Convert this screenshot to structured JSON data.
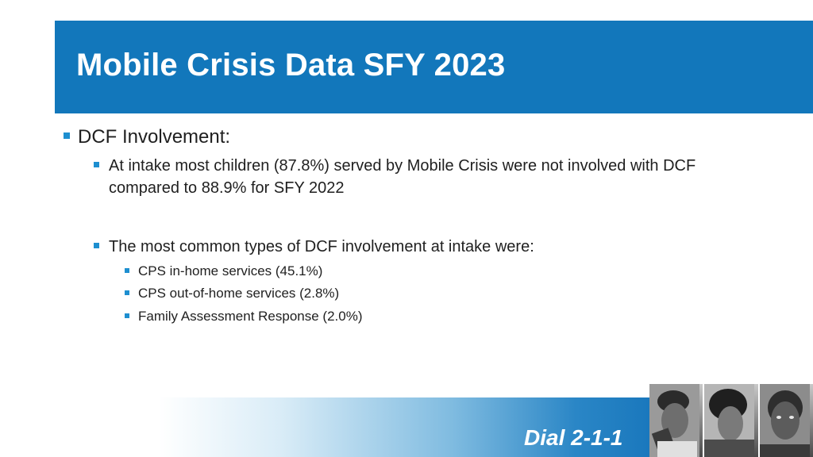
{
  "slide": {
    "title": "Mobile Crisis Data SFY 2023",
    "bullets": {
      "heading": "DCF Involvement:",
      "point1": "At intake most children (87.8%) served by Mobile Crisis were not involved with DCF compared to 88.9% for SFY 2022",
      "point2": "The most common types of DCF involvement at intake were:",
      "sub": [
        "CPS in-home services (45.1%)",
        "CPS out-of-home services (2.8%)",
        "Family Assessment Response (2.0%)"
      ]
    },
    "footer": {
      "dial_label": "Dial 2-1-1"
    },
    "photos": [
      "child-portrait",
      "child-portrait",
      "child-portrait"
    ],
    "colors": {
      "title_bar": "#1277bb",
      "bullet": "#1e8fd0",
      "band_end": "#1a78bd"
    }
  }
}
